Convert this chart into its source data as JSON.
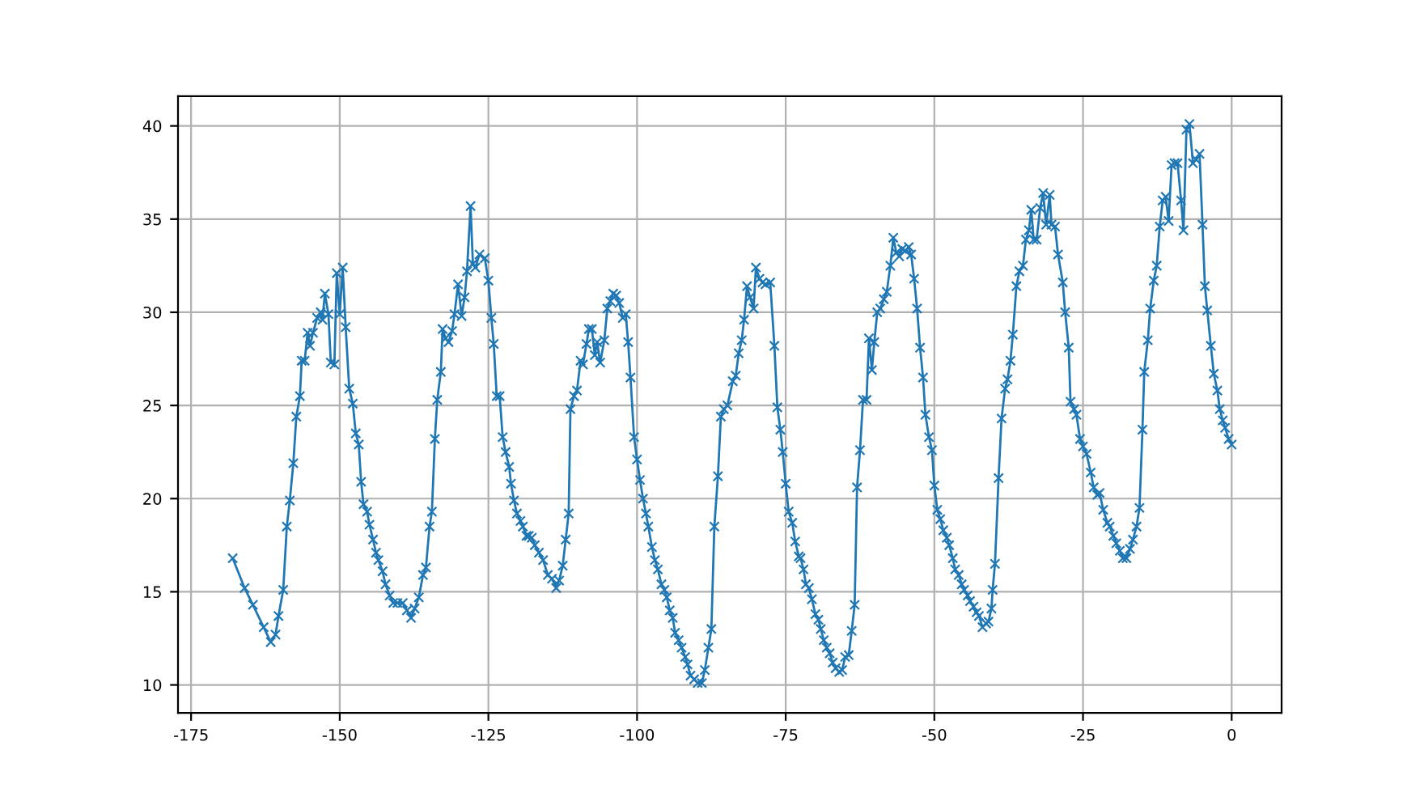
{
  "chart_data": {
    "type": "line",
    "marker": "cross",
    "line_style": "solid",
    "grid": true,
    "xlim": [
      -177.2,
      8.4
    ],
    "ylim": [
      8.5,
      41.6
    ],
    "xticks": [
      -175,
      -150,
      -125,
      -100,
      -75,
      -50,
      -25,
      0
    ],
    "yticks": [
      10,
      15,
      20,
      25,
      30,
      35,
      40
    ],
    "series": [
      {
        "color": "#1f77b4",
        "x": [
          -168.0,
          -166.0,
          -164.6,
          -162.8,
          -161.6,
          -160.8,
          -160.3,
          -159.5,
          -158.9,
          -158.4,
          -157.8,
          -157.3,
          -156.7,
          -156.4,
          -155.9,
          -155.4,
          -155.0,
          -154.5,
          -153.8,
          -153.2,
          -152.9,
          -152.5,
          -151.9,
          -151.5,
          -150.9,
          -150.5,
          -150.0,
          -149.5,
          -149.0,
          -148.4,
          -147.8,
          -147.3,
          -146.8,
          -146.4,
          -146.0,
          -145.4,
          -145.0,
          -144.4,
          -143.9,
          -143.5,
          -142.8,
          -142.3,
          -141.6,
          -141.0,
          -140.3,
          -139.4,
          -138.7,
          -138.0,
          -137.4,
          -136.7,
          -136.0,
          -135.5,
          -134.9,
          -134.5,
          -134.0,
          -133.6,
          -133.0,
          -132.7,
          -132.2,
          -131.7,
          -131.1,
          -130.7,
          -130.1,
          -129.5,
          -129.0,
          -128.6,
          -128.0,
          -127.6,
          -127.2,
          -126.5,
          -125.6,
          -125.0,
          -124.5,
          -124.1,
          -123.6,
          -123.1,
          -122.6,
          -122.1,
          -121.5,
          -121.2,
          -120.7,
          -120.2,
          -119.6,
          -119.2,
          -118.6,
          -118.2,
          -117.7,
          -117.2,
          -116.5,
          -115.8,
          -115.0,
          -114.3,
          -113.6,
          -113.1,
          -112.5,
          -112.0,
          -111.5,
          -111.2,
          -110.6,
          -110.1,
          -109.5,
          -109.1,
          -108.5,
          -108.1,
          -107.6,
          -107.1,
          -106.7,
          -106.2,
          -105.5,
          -105.0,
          -104.5,
          -104.0,
          -103.5,
          -103.0,
          -102.4,
          -101.9,
          -101.5,
          -101.1,
          -100.5,
          -100.0,
          -99.5,
          -99.0,
          -98.5,
          -98.1,
          -97.5,
          -97.0,
          -96.5,
          -95.9,
          -95.4,
          -95.0,
          -94.5,
          -94.0,
          -93.6,
          -93.0,
          -92.5,
          -91.9,
          -91.5,
          -91.0,
          -90.4,
          -89.8,
          -89.1,
          -88.6,
          -88.0,
          -87.5,
          -87.0,
          -86.4,
          -85.9,
          -85.4,
          -84.8,
          -83.9,
          -83.4,
          -82.9,
          -82.4,
          -82.0,
          -81.5,
          -81.0,
          -80.4,
          -80.0,
          -79.4,
          -78.9,
          -78.4,
          -77.6,
          -76.9,
          -76.4,
          -75.9,
          -75.5,
          -75.0,
          -74.5,
          -73.9,
          -73.4,
          -72.8,
          -72.5,
          -72.0,
          -71.6,
          -71.1,
          -70.6,
          -70.0,
          -69.5,
          -69.1,
          -68.6,
          -68.1,
          -67.6,
          -67.1,
          -66.6,
          -66.0,
          -65.5,
          -65.0,
          -64.4,
          -63.9,
          -63.4,
          -63.0,
          -62.5,
          -62.0,
          -61.4,
          -61.0,
          -60.5,
          -60.1,
          -59.6,
          -59.1,
          -58.5,
          -58.0,
          -57.4,
          -56.9,
          -56.4,
          -55.9,
          -55.4,
          -54.9,
          -54.3,
          -53.9,
          -53.4,
          -52.9,
          -52.4,
          -51.9,
          -51.5,
          -50.9,
          -50.4,
          -50.0,
          -49.5,
          -49.0,
          -48.5,
          -47.9,
          -47.5,
          -46.9,
          -46.5,
          -45.9,
          -45.4,
          -45.0,
          -44.4,
          -44.0,
          -43.4,
          -42.9,
          -42.5,
          -41.9,
          -41.3,
          -40.9,
          -40.4,
          -40.2,
          -39.8,
          -39.2,
          -38.7,
          -38.1,
          -37.7,
          -37.2,
          -36.8,
          -36.2,
          -35.7,
          -35.1,
          -34.6,
          -34.1,
          -33.7,
          -33.3,
          -32.8,
          -32.2,
          -31.7,
          -31.2,
          -30.6,
          -30.3,
          -29.7,
          -29.2,
          -28.4,
          -28.0,
          -27.4,
          -27.1,
          -26.5,
          -26.1,
          -25.5,
          -25.0,
          -24.4,
          -23.7,
          -23.2,
          -22.6,
          -22.2,
          -21.6,
          -20.9,
          -20.5,
          -19.9,
          -19.4,
          -18.8,
          -18.3,
          -17.7,
          -17.1,
          -16.6,
          -16.0,
          -15.5,
          -15.0,
          -14.7,
          -14.1,
          -13.7,
          -13.1,
          -12.6,
          -12.1,
          -11.6,
          -11.1,
          -10.6,
          -10.1,
          -9.6,
          -9.1,
          -8.5,
          -8.1,
          -7.6,
          -7.1,
          -6.5,
          -6.0,
          -5.4,
          -4.9,
          -4.5,
          -4.1,
          -3.5,
          -3.0,
          -2.4,
          -2.0,
          -1.5,
          -1.1,
          -0.5,
          0.0
        ],
        "values": [
          16.8,
          15.2,
          14.3,
          13.1,
          12.3,
          12.7,
          13.7,
          15.1,
          18.5,
          19.9,
          21.9,
          24.4,
          25.5,
          27.4,
          27.4,
          28.9,
          28.2,
          28.9,
          29.7,
          30.0,
          29.6,
          31.0,
          29.9,
          27.3,
          27.2,
          32.1,
          29.9,
          32.4,
          29.2,
          25.9,
          25.1,
          23.5,
          22.9,
          20.9,
          19.7,
          19.3,
          18.6,
          17.8,
          17.1,
          16.7,
          16.1,
          15.4,
          14.8,
          14.4,
          14.4,
          14.4,
          14.0,
          13.6,
          14.1,
          14.7,
          15.9,
          16.3,
          18.5,
          19.3,
          23.2,
          25.3,
          26.8,
          29.1,
          28.6,
          28.4,
          29.0,
          29.9,
          31.5,
          29.8,
          30.8,
          32.2,
          35.7,
          32.6,
          32.4,
          33.1,
          32.9,
          31.7,
          29.7,
          28.3,
          25.5,
          25.5,
          23.3,
          22.5,
          21.7,
          20.8,
          19.9,
          19.2,
          18.8,
          18.5,
          18.0,
          18.0,
          17.9,
          17.5,
          17.1,
          16.7,
          15.9,
          15.7,
          15.2,
          15.6,
          16.4,
          17.8,
          19.2,
          24.8,
          25.5,
          25.8,
          27.4,
          27.2,
          28.3,
          29.1,
          29.1,
          27.7,
          28.4,
          27.3,
          28.5,
          30.2,
          30.6,
          31.0,
          30.9,
          30.5,
          29.7,
          29.9,
          28.4,
          26.5,
          23.3,
          22.1,
          21.0,
          20.0,
          19.2,
          18.5,
          17.4,
          16.7,
          16.2,
          15.4,
          15.1,
          14.7,
          14.0,
          13.6,
          12.8,
          12.4,
          12.0,
          11.5,
          11.1,
          10.5,
          10.3,
          10.1,
          10.1,
          10.8,
          12.0,
          13.0,
          18.5,
          21.2,
          24.4,
          24.8,
          25.0,
          26.3,
          26.6,
          27.8,
          28.5,
          29.6,
          31.4,
          30.8,
          30.2,
          32.4,
          31.8,
          31.6,
          31.5,
          31.6,
          28.2,
          24.9,
          23.7,
          22.5,
          20.8,
          19.3,
          18.7,
          17.7,
          16.9,
          16.8,
          16.2,
          15.4,
          15.2,
          14.6,
          13.8,
          13.5,
          13.0,
          12.4,
          12.0,
          11.7,
          11.2,
          10.9,
          10.7,
          10.8,
          11.5,
          11.6,
          12.9,
          14.3,
          20.6,
          22.6,
          25.3,
          25.3,
          28.6,
          26.9,
          28.4,
          30.0,
          30.2,
          30.7,
          31.1,
          32.5,
          34.0,
          33.2,
          33.0,
          33.4,
          33.3,
          33.5,
          33.1,
          31.8,
          30.2,
          28.1,
          26.5,
          24.5,
          23.3,
          22.6,
          20.7,
          19.4,
          18.9,
          18.3,
          17.9,
          17.5,
          16.8,
          16.2,
          15.9,
          15.4,
          15.1,
          14.8,
          14.5,
          14.2,
          13.9,
          13.7,
          13.1,
          13.3,
          13.4,
          14.1,
          15.1,
          16.5,
          21.1,
          24.3,
          25.9,
          26.4,
          27.4,
          28.8,
          31.4,
          32.2,
          32.5,
          33.9,
          34.4,
          35.5,
          33.9,
          33.9,
          35.6,
          36.4,
          34.7,
          36.3,
          34.7,
          34.6,
          33.1,
          31.6,
          30.0,
          28.1,
          25.2,
          24.8,
          24.5,
          23.2,
          22.8,
          22.4,
          21.4,
          20.6,
          20.2,
          20.3,
          19.4,
          18.7,
          18.5,
          18.0,
          17.6,
          17.2,
          16.8,
          16.8,
          17.3,
          17.8,
          18.5,
          19.5,
          23.7,
          26.8,
          28.5,
          30.2,
          31.7,
          32.5,
          34.6,
          36.0,
          36.2,
          34.9,
          37.9,
          38.0,
          38.0,
          36.0,
          34.4,
          39.8,
          40.1,
          38.0,
          38.2,
          38.5,
          34.7,
          31.4,
          30.1,
          28.2,
          26.7,
          25.8,
          24.8,
          24.2,
          23.8,
          23.2,
          22.9
        ]
      }
    ]
  }
}
